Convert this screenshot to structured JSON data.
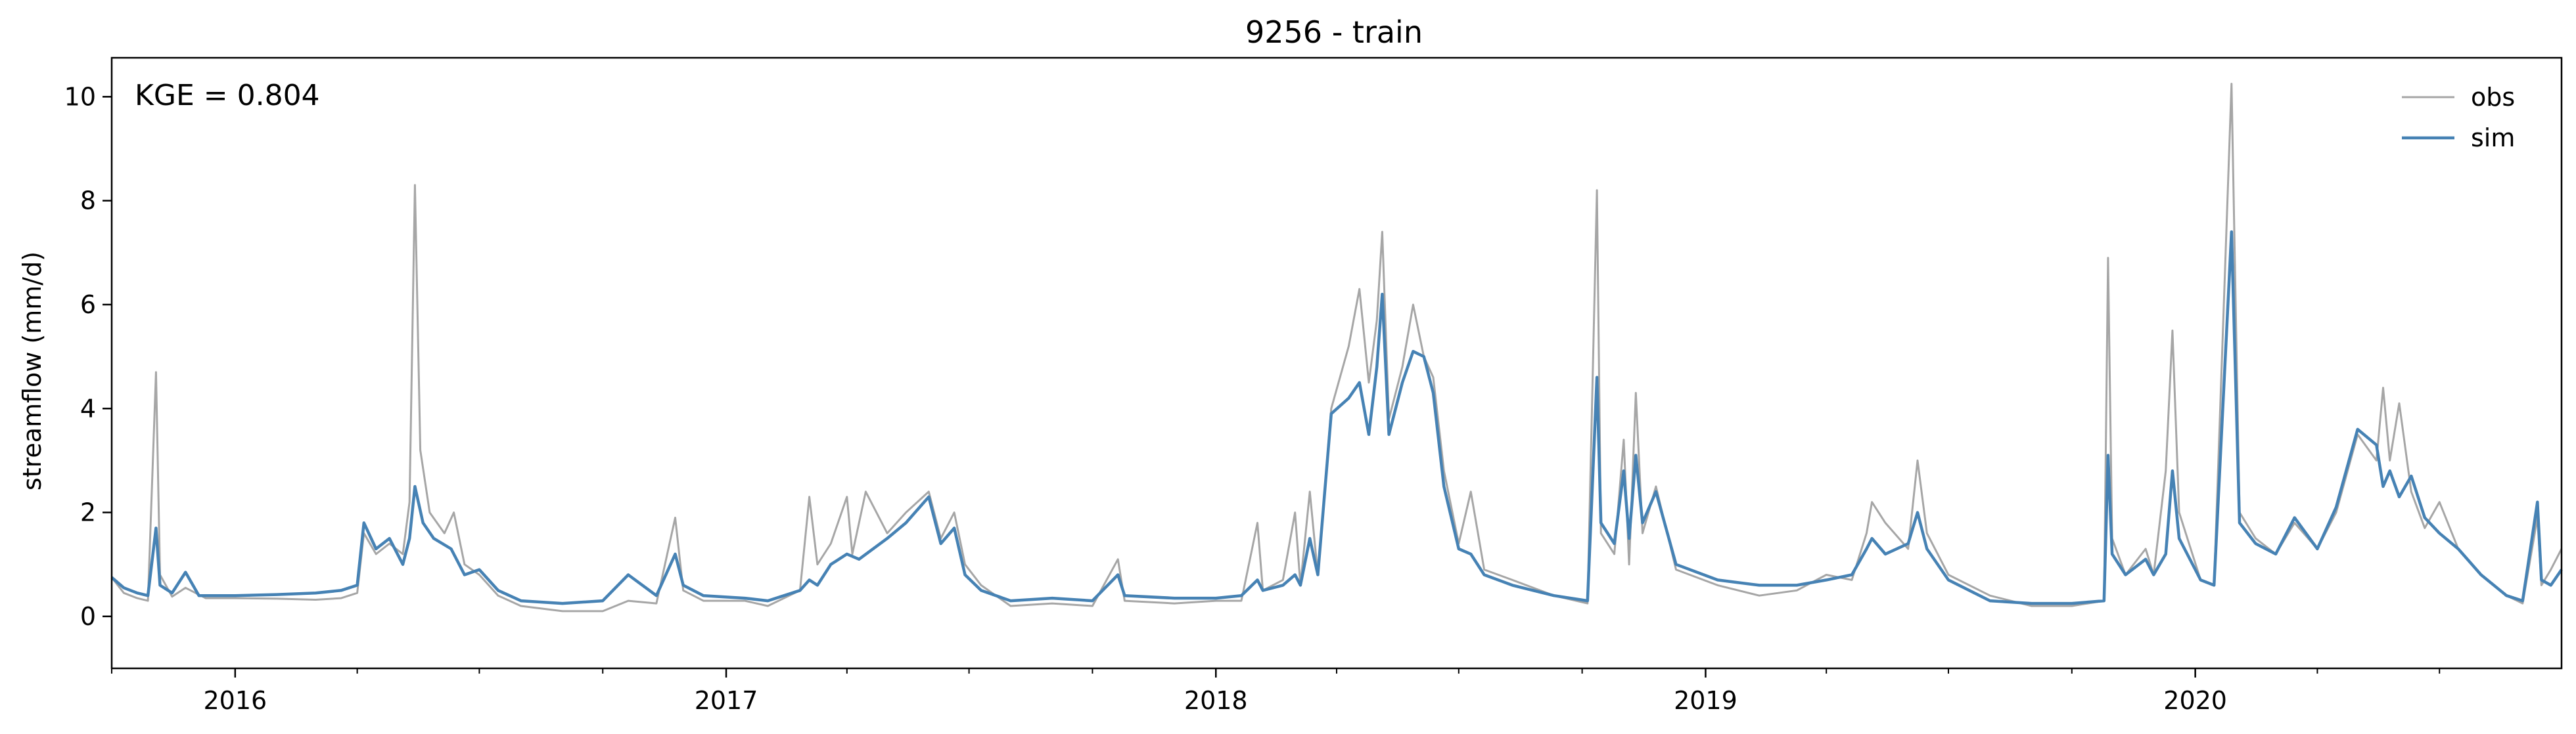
{
  "chart_data": {
    "type": "line",
    "title": "9256 - train",
    "xlabel": "",
    "ylabel": "streamflow (mm/d)",
    "annotation": "KGE = 0.804",
    "xlim": [
      "2015-10-01",
      "2020-09-30"
    ],
    "ylim": [
      -1.0,
      10.75
    ],
    "yticks": [
      0,
      2,
      4,
      6,
      8,
      10
    ],
    "xticks": [
      {
        "date": "2016-01-01",
        "label": "2016"
      },
      {
        "date": "2017-01-01",
        "label": "2017"
      },
      {
        "date": "2018-01-01",
        "label": "2018"
      },
      {
        "date": "2019-01-01",
        "label": "2019"
      },
      {
        "date": "2020-01-01",
        "label": "2020"
      }
    ],
    "grid": false,
    "legend": {
      "placement": "top-right"
    },
    "colors": {
      "obs": "#a6a6a6",
      "sim": "#4682b4"
    },
    "series": [
      {
        "name": "obs",
        "points": [
          [
            "2015-10-01",
            0.75
          ],
          [
            "2015-10-10",
            0.45
          ],
          [
            "2015-10-20",
            0.35
          ],
          [
            "2015-10-28",
            0.3
          ],
          [
            "2015-11-03",
            4.7
          ],
          [
            "2015-11-06",
            0.8
          ],
          [
            "2015-11-15",
            0.38
          ],
          [
            "2015-11-25",
            0.55
          ],
          [
            "2015-12-10",
            0.35
          ],
          [
            "2016-01-01",
            0.35
          ],
          [
            "2016-02-01",
            0.34
          ],
          [
            "2016-03-01",
            0.32
          ],
          [
            "2016-03-20",
            0.35
          ],
          [
            "2016-04-01",
            0.45
          ],
          [
            "2016-04-06",
            1.6
          ],
          [
            "2016-04-15",
            1.2
          ],
          [
            "2016-04-25",
            1.4
          ],
          [
            "2016-05-05",
            1.2
          ],
          [
            "2016-05-10",
            2.2
          ],
          [
            "2016-05-14",
            8.3
          ],
          [
            "2016-05-18",
            3.2
          ],
          [
            "2016-05-25",
            2.0
          ],
          [
            "2016-06-05",
            1.6
          ],
          [
            "2016-06-12",
            2.0
          ],
          [
            "2016-06-20",
            1.0
          ],
          [
            "2016-07-01",
            0.8
          ],
          [
            "2016-07-15",
            0.4
          ],
          [
            "2016-08-01",
            0.2
          ],
          [
            "2016-09-01",
            0.1
          ],
          [
            "2016-10-01",
            0.1
          ],
          [
            "2016-10-20",
            0.3
          ],
          [
            "2016-11-10",
            0.25
          ],
          [
            "2016-11-24",
            1.9
          ],
          [
            "2016-11-30",
            0.5
          ],
          [
            "2016-12-15",
            0.3
          ],
          [
            "2017-01-15",
            0.3
          ],
          [
            "2017-02-01",
            0.2
          ],
          [
            "2017-02-25",
            0.5
          ],
          [
            "2017-03-04",
            2.3
          ],
          [
            "2017-03-10",
            1.0
          ],
          [
            "2017-03-20",
            1.4
          ],
          [
            "2017-04-01",
            2.3
          ],
          [
            "2017-04-05",
            1.2
          ],
          [
            "2017-04-15",
            2.4
          ],
          [
            "2017-05-01",
            1.6
          ],
          [
            "2017-05-15",
            2.0
          ],
          [
            "2017-06-01",
            2.4
          ],
          [
            "2017-06-10",
            1.5
          ],
          [
            "2017-06-20",
            2.0
          ],
          [
            "2017-06-28",
            1.0
          ],
          [
            "2017-07-10",
            0.6
          ],
          [
            "2017-08-01",
            0.2
          ],
          [
            "2017-09-01",
            0.25
          ],
          [
            "2017-10-01",
            0.2
          ],
          [
            "2017-10-20",
            1.1
          ],
          [
            "2017-10-25",
            0.3
          ],
          [
            "2017-12-01",
            0.25
          ],
          [
            "2018-01-01",
            0.3
          ],
          [
            "2018-01-20",
            0.3
          ],
          [
            "2018-02-01",
            1.8
          ],
          [
            "2018-02-05",
            0.5
          ],
          [
            "2018-02-20",
            0.7
          ],
          [
            "2018-03-01",
            2.0
          ],
          [
            "2018-03-05",
            0.6
          ],
          [
            "2018-03-12",
            2.4
          ],
          [
            "2018-03-18",
            0.8
          ],
          [
            "2018-03-28",
            4.0
          ],
          [
            "2018-04-10",
            5.2
          ],
          [
            "2018-04-18",
            6.3
          ],
          [
            "2018-04-25",
            4.5
          ],
          [
            "2018-05-01",
            5.7
          ],
          [
            "2018-05-05",
            7.4
          ],
          [
            "2018-05-10",
            3.8
          ],
          [
            "2018-05-20",
            4.8
          ],
          [
            "2018-05-28",
            6.0
          ],
          [
            "2018-06-05",
            5.0
          ],
          [
            "2018-06-12",
            4.6
          ],
          [
            "2018-06-20",
            2.8
          ],
          [
            "2018-07-01",
            1.4
          ],
          [
            "2018-07-10",
            2.4
          ],
          [
            "2018-07-20",
            0.9
          ],
          [
            "2018-08-10",
            0.7
          ],
          [
            "2018-09-10",
            0.4
          ],
          [
            "2018-10-05",
            0.25
          ],
          [
            "2018-10-12",
            8.2
          ],
          [
            "2018-10-15",
            1.6
          ],
          [
            "2018-10-25",
            1.2
          ],
          [
            "2018-11-01",
            3.4
          ],
          [
            "2018-11-05",
            1.0
          ],
          [
            "2018-11-10",
            4.3
          ],
          [
            "2018-11-15",
            1.6
          ],
          [
            "2018-11-25",
            2.5
          ],
          [
            "2018-12-10",
            0.9
          ],
          [
            "2019-01-10",
            0.6
          ],
          [
            "2019-02-10",
            0.4
          ],
          [
            "2019-03-10",
            0.5
          ],
          [
            "2019-04-01",
            0.8
          ],
          [
            "2019-04-20",
            0.7
          ],
          [
            "2019-05-01",
            1.6
          ],
          [
            "2019-05-05",
            2.2
          ],
          [
            "2019-05-15",
            1.8
          ],
          [
            "2019-06-01",
            1.3
          ],
          [
            "2019-06-08",
            3.0
          ],
          [
            "2019-06-15",
            1.6
          ],
          [
            "2019-07-01",
            0.8
          ],
          [
            "2019-08-01",
            0.4
          ],
          [
            "2019-09-01",
            0.2
          ],
          [
            "2019-10-01",
            0.2
          ],
          [
            "2019-10-25",
            0.3
          ],
          [
            "2019-10-28",
            6.9
          ],
          [
            "2019-10-31",
            1.5
          ],
          [
            "2019-11-10",
            0.8
          ],
          [
            "2019-11-25",
            1.3
          ],
          [
            "2019-12-01",
            0.8
          ],
          [
            "2019-12-10",
            2.8
          ],
          [
            "2019-12-15",
            5.5
          ],
          [
            "2019-12-20",
            2.0
          ],
          [
            "2020-01-05",
            0.7
          ],
          [
            "2020-01-15",
            0.6
          ],
          [
            "2020-01-28",
            10.25
          ],
          [
            "2020-02-03",
            2.0
          ],
          [
            "2020-02-15",
            1.5
          ],
          [
            "2020-03-01",
            1.2
          ],
          [
            "2020-03-15",
            1.8
          ],
          [
            "2020-04-01",
            1.3
          ],
          [
            "2020-04-15",
            2.0
          ],
          [
            "2020-05-01",
            3.5
          ],
          [
            "2020-05-15",
            3.0
          ],
          [
            "2020-05-20",
            4.4
          ],
          [
            "2020-05-25",
            3.0
          ],
          [
            "2020-06-01",
            4.1
          ],
          [
            "2020-06-10",
            2.4
          ],
          [
            "2020-06-20",
            1.7
          ],
          [
            "2020-07-01",
            2.2
          ],
          [
            "2020-07-15",
            1.3
          ],
          [
            "2020-08-01",
            0.8
          ],
          [
            "2020-08-20",
            0.4
          ],
          [
            "2020-09-01",
            0.25
          ],
          [
            "2020-09-12",
            1.9
          ],
          [
            "2020-09-15",
            0.6
          ],
          [
            "2020-09-22",
            0.9
          ],
          [
            "2020-09-30",
            1.3
          ]
        ]
      },
      {
        "name": "sim",
        "points": [
          [
            "2015-10-01",
            0.75
          ],
          [
            "2015-10-10",
            0.55
          ],
          [
            "2015-10-20",
            0.45
          ],
          [
            "2015-10-28",
            0.4
          ],
          [
            "2015-11-03",
            1.7
          ],
          [
            "2015-11-06",
            0.6
          ],
          [
            "2015-11-15",
            0.45
          ],
          [
            "2015-11-25",
            0.85
          ],
          [
            "2015-12-05",
            0.4
          ],
          [
            "2016-01-01",
            0.4
          ],
          [
            "2016-02-01",
            0.42
          ],
          [
            "2016-03-01",
            0.45
          ],
          [
            "2016-03-20",
            0.5
          ],
          [
            "2016-04-01",
            0.6
          ],
          [
            "2016-04-06",
            1.8
          ],
          [
            "2016-04-15",
            1.3
          ],
          [
            "2016-04-25",
            1.5
          ],
          [
            "2016-05-05",
            1.0
          ],
          [
            "2016-05-10",
            1.5
          ],
          [
            "2016-05-14",
            2.5
          ],
          [
            "2016-05-20",
            1.8
          ],
          [
            "2016-05-28",
            1.5
          ],
          [
            "2016-06-10",
            1.3
          ],
          [
            "2016-06-20",
            0.8
          ],
          [
            "2016-07-01",
            0.9
          ],
          [
            "2016-07-15",
            0.5
          ],
          [
            "2016-08-01",
            0.3
          ],
          [
            "2016-09-01",
            0.25
          ],
          [
            "2016-10-01",
            0.3
          ],
          [
            "2016-10-20",
            0.8
          ],
          [
            "2016-11-10",
            0.4
          ],
          [
            "2016-11-24",
            1.2
          ],
          [
            "2016-11-30",
            0.6
          ],
          [
            "2016-12-15",
            0.4
          ],
          [
            "2017-01-15",
            0.35
          ],
          [
            "2017-02-01",
            0.3
          ],
          [
            "2017-02-25",
            0.5
          ],
          [
            "2017-03-04",
            0.7
          ],
          [
            "2017-03-10",
            0.6
          ],
          [
            "2017-03-20",
            1.0
          ],
          [
            "2017-04-01",
            1.2
          ],
          [
            "2017-04-10",
            1.1
          ],
          [
            "2017-05-01",
            1.5
          ],
          [
            "2017-05-15",
            1.8
          ],
          [
            "2017-06-01",
            2.3
          ],
          [
            "2017-06-10",
            1.4
          ],
          [
            "2017-06-20",
            1.7
          ],
          [
            "2017-06-28",
            0.8
          ],
          [
            "2017-07-10",
            0.5
          ],
          [
            "2017-08-01",
            0.3
          ],
          [
            "2017-09-01",
            0.35
          ],
          [
            "2017-10-01",
            0.3
          ],
          [
            "2017-10-20",
            0.8
          ],
          [
            "2017-10-25",
            0.4
          ],
          [
            "2017-12-01",
            0.35
          ],
          [
            "2018-01-01",
            0.35
          ],
          [
            "2018-01-20",
            0.4
          ],
          [
            "2018-02-01",
            0.7
          ],
          [
            "2018-02-05",
            0.5
          ],
          [
            "2018-02-20",
            0.6
          ],
          [
            "2018-03-01",
            0.8
          ],
          [
            "2018-03-05",
            0.6
          ],
          [
            "2018-03-12",
            1.5
          ],
          [
            "2018-03-18",
            0.8
          ],
          [
            "2018-03-28",
            3.9
          ],
          [
            "2018-04-10",
            4.2
          ],
          [
            "2018-04-18",
            4.5
          ],
          [
            "2018-04-25",
            3.5
          ],
          [
            "2018-05-01",
            4.8
          ],
          [
            "2018-05-05",
            6.2
          ],
          [
            "2018-05-10",
            3.5
          ],
          [
            "2018-05-20",
            4.5
          ],
          [
            "2018-05-28",
            5.1
          ],
          [
            "2018-06-05",
            5.0
          ],
          [
            "2018-06-12",
            4.3
          ],
          [
            "2018-06-20",
            2.5
          ],
          [
            "2018-07-01",
            1.3
          ],
          [
            "2018-07-10",
            1.2
          ],
          [
            "2018-07-20",
            0.8
          ],
          [
            "2018-08-10",
            0.6
          ],
          [
            "2018-09-10",
            0.4
          ],
          [
            "2018-10-05",
            0.3
          ],
          [
            "2018-10-12",
            4.6
          ],
          [
            "2018-10-15",
            1.8
          ],
          [
            "2018-10-25",
            1.4
          ],
          [
            "2018-11-01",
            2.8
          ],
          [
            "2018-11-05",
            1.5
          ],
          [
            "2018-11-10",
            3.1
          ],
          [
            "2018-11-15",
            1.8
          ],
          [
            "2018-11-25",
            2.4
          ],
          [
            "2018-12-10",
            1.0
          ],
          [
            "2019-01-10",
            0.7
          ],
          [
            "2019-02-10",
            0.6
          ],
          [
            "2019-03-10",
            0.6
          ],
          [
            "2019-04-01",
            0.7
          ],
          [
            "2019-04-20",
            0.8
          ],
          [
            "2019-05-01",
            1.3
          ],
          [
            "2019-05-05",
            1.5
          ],
          [
            "2019-05-15",
            1.2
          ],
          [
            "2019-06-01",
            1.4
          ],
          [
            "2019-06-08",
            2.0
          ],
          [
            "2019-06-15",
            1.3
          ],
          [
            "2019-07-01",
            0.7
          ],
          [
            "2019-08-01",
            0.3
          ],
          [
            "2019-09-01",
            0.25
          ],
          [
            "2019-10-01",
            0.25
          ],
          [
            "2019-10-25",
            0.3
          ],
          [
            "2019-10-28",
            3.1
          ],
          [
            "2019-10-31",
            1.2
          ],
          [
            "2019-11-10",
            0.8
          ],
          [
            "2019-11-25",
            1.1
          ],
          [
            "2019-12-01",
            0.8
          ],
          [
            "2019-12-10",
            1.2
          ],
          [
            "2019-12-15",
            2.8
          ],
          [
            "2019-12-20",
            1.5
          ],
          [
            "2020-01-05",
            0.7
          ],
          [
            "2020-01-15",
            0.6
          ],
          [
            "2020-01-28",
            7.4
          ],
          [
            "2020-02-03",
            1.8
          ],
          [
            "2020-02-15",
            1.4
          ],
          [
            "2020-03-01",
            1.2
          ],
          [
            "2020-03-15",
            1.9
          ],
          [
            "2020-04-01",
            1.3
          ],
          [
            "2020-04-15",
            2.1
          ],
          [
            "2020-05-01",
            3.6
          ],
          [
            "2020-05-15",
            3.3
          ],
          [
            "2020-05-20",
            2.5
          ],
          [
            "2020-05-25",
            2.8
          ],
          [
            "2020-06-01",
            2.3
          ],
          [
            "2020-06-10",
            2.7
          ],
          [
            "2020-06-20",
            1.9
          ],
          [
            "2020-07-01",
            1.6
          ],
          [
            "2020-07-15",
            1.3
          ],
          [
            "2020-08-01",
            0.8
          ],
          [
            "2020-08-20",
            0.4
          ],
          [
            "2020-09-01",
            0.3
          ],
          [
            "2020-09-12",
            2.2
          ],
          [
            "2020-09-15",
            0.7
          ],
          [
            "2020-09-22",
            0.6
          ],
          [
            "2020-09-30",
            0.9
          ]
        ]
      }
    ]
  }
}
